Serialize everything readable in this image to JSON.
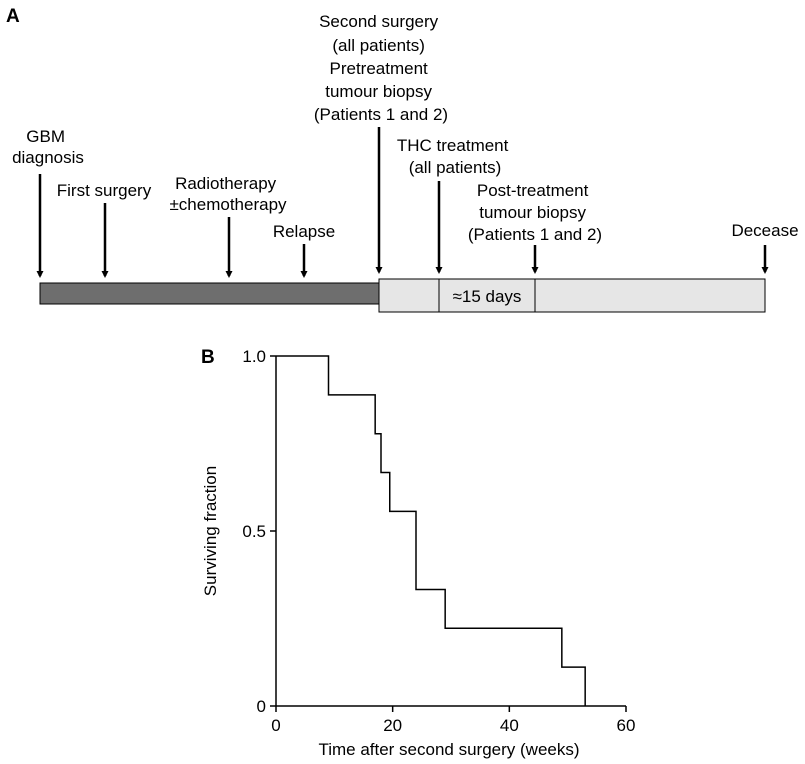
{
  "panel_a": {
    "label": "A",
    "events": [
      {
        "id": "gbm-diagnosis",
        "lines": [
          "GBM",
          "diagnosis"
        ]
      },
      {
        "id": "first-surgery",
        "lines": [
          "First surgery"
        ]
      },
      {
        "id": "radiotherapy",
        "lines": [
          "Radiotherapy",
          "±chemotherapy"
        ]
      },
      {
        "id": "relapse",
        "lines": [
          "Relapse"
        ]
      },
      {
        "id": "second-surgery",
        "lines": [
          "Second surgery",
          "(all patients)",
          "Pretreatment",
          "tumour biopsy",
          "(Patients 1 and 2)"
        ]
      },
      {
        "id": "thc-treatment",
        "lines": [
          "THC treatment",
          "(all patients)"
        ]
      },
      {
        "id": "post-treatment-biopsy",
        "lines": [
          "Post-treatment",
          "tumour biopsy",
          "(Patients 1 and 2)"
        ]
      },
      {
        "id": "decease",
        "lines": [
          "Decease"
        ]
      }
    ],
    "interval_label": "≈15 days",
    "colors": {
      "pre_phase": "#6e6e6e",
      "post_phase": "#e6e6e6",
      "stroke": "#000000"
    }
  },
  "panel_b": {
    "label": "B"
  },
  "chart_data": {
    "type": "line",
    "subtype": "step (Kaplan-Meier survival curve)",
    "title": "",
    "xlabel": "Time after second surgery (weeks)",
    "ylabel": "Surviving fraction",
    "xlim": [
      0,
      60
    ],
    "ylim": [
      0,
      1.0
    ],
    "xticks": [
      0,
      20,
      40,
      60
    ],
    "yticks": [
      0,
      0.5,
      1.0
    ],
    "ytick_labels": [
      "0",
      "0.5",
      "1.0"
    ],
    "grid": false,
    "series": [
      {
        "x": [
          0,
          9,
          17,
          18,
          19.5,
          24,
          29,
          49,
          53
        ],
        "y": [
          1.0,
          0.889,
          0.778,
          0.667,
          0.556,
          0.333,
          0.222,
          0.111,
          0.0
        ]
      }
    ]
  }
}
